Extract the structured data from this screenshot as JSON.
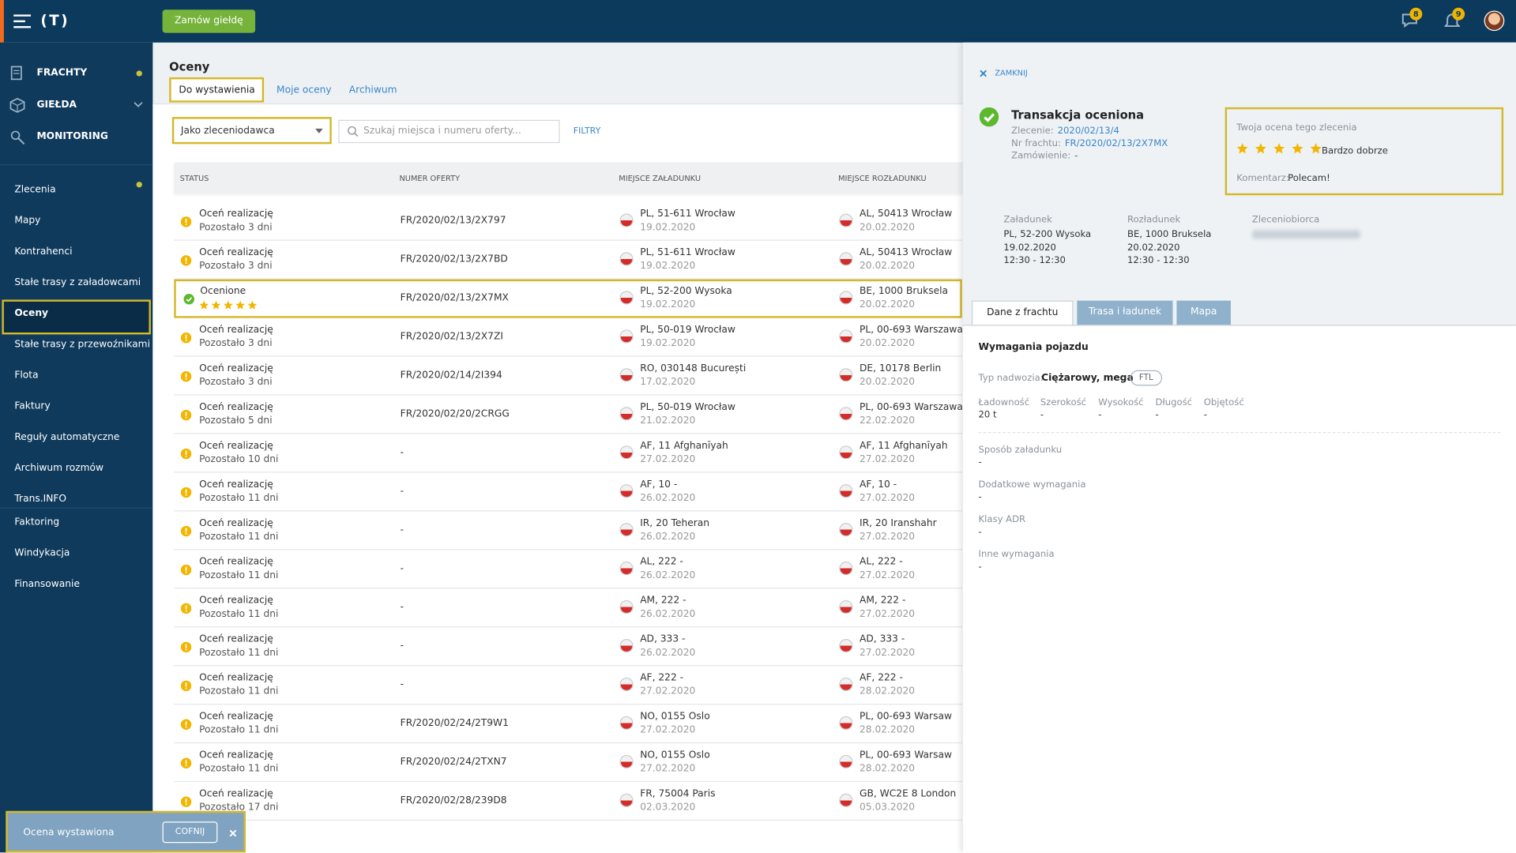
{
  "header": {
    "logo": "(T)",
    "button": "Zamów giełdę",
    "messages_badge": "8",
    "notifications_badge": "9"
  },
  "sidebar": {
    "top": [
      "FRACHTY",
      "GIEŁDA",
      "MONITORING"
    ],
    "items": [
      "Zlecenia",
      "Mapy",
      "Kontrahenci",
      "Stałe trasy z załadowcami",
      "Oceny",
      "Stałe trasy z przewoźnikami",
      "Flota",
      "Faktury",
      "Reguły automatyczne",
      "Archiwum rozmów",
      "Trans.INFO"
    ],
    "bottom": [
      "Faktoring",
      "Windykacja",
      "Finansowanie"
    ]
  },
  "page": {
    "title": "Oceny",
    "tabs": [
      "Do wystawienia",
      "Moje oceny",
      "Archiwum"
    ],
    "filter": "Jako zleceniodawca",
    "search_placeholder": "Szukaj miejsca i numeru oferty...",
    "filters_button": "FILTRY"
  },
  "table": {
    "columns": [
      "STATUS",
      "NUMER OFERTY",
      "MIEJSCE ZAŁADUNKU",
      "MIEJSCE ROZŁADUNKU"
    ],
    "rows": [
      {
        "status": "Oceń realizację",
        "remaining": "Pozostało 3 dni",
        "offer": "FR/2020/02/13/2X797",
        "load": "PL, 51-611 Wrocław",
        "load_date": "19.02.2020",
        "unload": "AL, 50413 Wrocław",
        "unload_date": "20.02.2020"
      },
      {
        "status": "Oceń realizację",
        "remaining": "Pozostało 3 dni",
        "offer": "FR/2020/02/13/2X7BD",
        "load": "PL, 51-611 Wrocław",
        "load_date": "19.02.2020",
        "unload": "AL, 50413 Wrocław",
        "unload_date": "20.02.2020"
      },
      {
        "status": "Ocenione",
        "rating": 5,
        "offer": "FR/2020/02/13/2X7MX",
        "load": "PL, 52-200 Wysoka",
        "load_date": "19.02.2020",
        "unload": "BE, 1000 Bruksela",
        "unload_date": "20.02.2020"
      },
      {
        "status": "Oceń realizację",
        "remaining": "Pozostało 3 dni",
        "offer": "FR/2020/02/13/2X7ZI",
        "load": "PL, 50-019 Wrocław",
        "load_date": "19.02.2020",
        "unload": "PL, 00-693 Warszawa",
        "unload_date": "20.02.2020"
      },
      {
        "status": "Oceń realizację",
        "remaining": "Pozostało 3 dni",
        "offer": "FR/2020/02/14/2I394",
        "load": "RO, 030148 București",
        "load_date": "17.02.2020",
        "unload": "DE, 10178 Berlin",
        "unload_date": "20.02.2020"
      },
      {
        "status": "Oceń realizację",
        "remaining": "Pozostało 5 dni",
        "offer": "FR/2020/02/20/2CRGG",
        "load": "PL, 50-019 Wrocław",
        "load_date": "21.02.2020",
        "unload": "PL, 00-693 Warszawa",
        "unload_date": "22.02.2020"
      },
      {
        "status": "Oceń realizację",
        "remaining": "Pozostało 10 dni",
        "offer": "-",
        "load": "AF, 11 Afghanīyah",
        "load_date": "27.02.2020",
        "unload": "AF, 11 Afghanīyah",
        "unload_date": "27.02.2020"
      },
      {
        "status": "Oceń realizację",
        "remaining": "Pozostało 11 dni",
        "offer": "-",
        "load": "AF, 10 -",
        "load_date": "26.02.2020",
        "unload": "AF, 10 -",
        "unload_date": "27.02.2020"
      },
      {
        "status": "Oceń realizację",
        "remaining": "Pozostało 11 dni",
        "offer": "-",
        "load": "IR, 20 Teheran",
        "load_date": "26.02.2020",
        "unload": "IR, 20 Iranshahr",
        "unload_date": "27.02.2020"
      },
      {
        "status": "Oceń realizację",
        "remaining": "Pozostało 11 dni",
        "offer": "-",
        "load": "AL, 222 -",
        "load_date": "26.02.2020",
        "unload": "AL, 222 -",
        "unload_date": "27.02.2020"
      },
      {
        "status": "Oceń realizację",
        "remaining": "Pozostało 11 dni",
        "offer": "-",
        "load": "AM, 222 -",
        "load_date": "26.02.2020",
        "unload": "AM, 222 -",
        "unload_date": "27.02.2020"
      },
      {
        "status": "Oceń realizację",
        "remaining": "Pozostało 11 dni",
        "offer": "-",
        "load": "AD, 333 -",
        "load_date": "26.02.2020",
        "unload": "AD, 333 -",
        "unload_date": "27.02.2020"
      },
      {
        "status": "Oceń realizację",
        "remaining": "Pozostało 11 dni",
        "offer": "-",
        "load": "AF, 222 -",
        "load_date": "27.02.2020",
        "unload": "AF, 222 -",
        "unload_date": "28.02.2020"
      },
      {
        "status": "Oceń realizację",
        "remaining": "Pozostało 11 dni",
        "offer": "FR/2020/02/24/2T9W1",
        "load": "NO, 0155 Oslo",
        "load_date": "27.02.2020",
        "unload": "PL, 00-693 Warsaw",
        "unload_date": "28.02.2020"
      },
      {
        "status": "Oceń realizację",
        "remaining": "Pozostało 11 dni",
        "offer": "FR/2020/02/24/2TXN7",
        "load": "NO, 0155 Oslo",
        "load_date": "27.02.2020",
        "unload": "PL, 00-693 Warsaw",
        "unload_date": "28.02.2020"
      },
      {
        "status": "Oceń realizację",
        "remaining": "Pozostało 17 dni",
        "offer": "FR/2020/02/28/239D8",
        "load": "FR, 75004 Paris",
        "load_date": "02.03.2020",
        "unload": "GB, WC2E 8 London",
        "unload_date": "05.03.2020"
      }
    ]
  },
  "detail": {
    "close": "ZAMKNIJ",
    "title": "Transakcja oceniona",
    "meta": [
      {
        "label": "Zlecenie:",
        "value": "2020/02/13/4"
      },
      {
        "label": "Nr frachtu:",
        "value": "FR/2020/02/13/2X7MX"
      },
      {
        "label": "Zamówienie:",
        "value": "-"
      }
    ],
    "rating_box": {
      "title": "Twoja ocena tego zlecenia",
      "rating": 5,
      "rating_text": "Bardzo dobrze",
      "comment_label": "Komentarz:",
      "comment": "Polecam!"
    },
    "route": [
      {
        "label": "Załadunek",
        "lines": [
          "PL, 52-200 Wysoka",
          "19.02.2020",
          "12:30 - 12:30"
        ]
      },
      {
        "label": "Rozładunek",
        "lines": [
          "BE, 1000 Bruksela",
          "20.02.2020",
          "12:30 - 12:30"
        ]
      },
      {
        "label": "Zleceniobiorca",
        "lines": []
      }
    ],
    "tabs": [
      "Dane z frachtu",
      "Trasa i ładunek",
      "Mapa"
    ],
    "section_title": "Wymagania pojazdu",
    "body_label": "Typ nadwozia:",
    "body_value": "Ciężarowy, mega",
    "body_tag": "FTL",
    "dimensions": [
      {
        "label": "Ładowność",
        "value": "20 t"
      },
      {
        "label": "Szerokość",
        "value": "-"
      },
      {
        "label": "Wysokość",
        "value": "-"
      },
      {
        "label": "Długość",
        "value": "-"
      },
      {
        "label": "Objętość",
        "value": "-"
      }
    ],
    "fields": [
      {
        "label": "Sposób załadunku",
        "value": "-"
      },
      {
        "label": "Dodatkowe wymagania",
        "value": "-"
      },
      {
        "label": "Klasy ADR",
        "value": "-"
      },
      {
        "label": "Inne wymagania",
        "value": "-"
      }
    ]
  },
  "toast": {
    "message": "Ocena wystawiona",
    "undo": "COFNIJ"
  }
}
